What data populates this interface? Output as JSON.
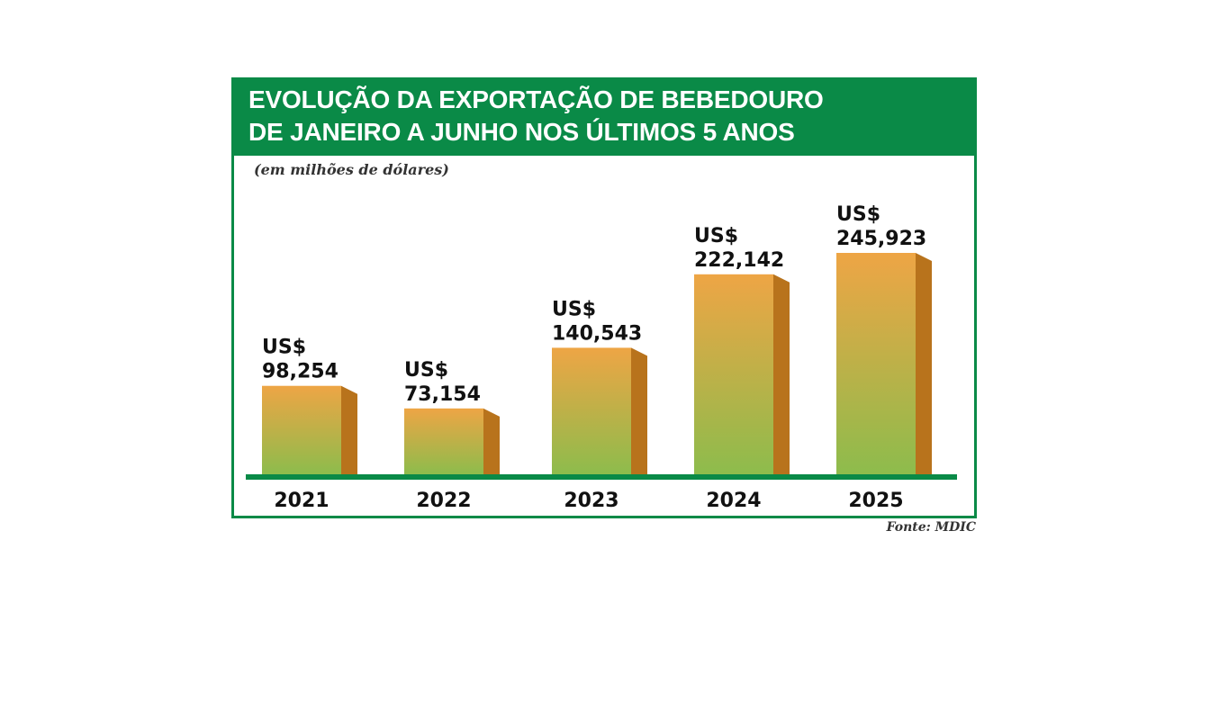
{
  "chart_data": {
    "type": "bar",
    "title": "EVOLUÇÃO DA EXPORTAÇÃO DE BEBEDOURO",
    "subtitle": "DE JANEIRO A JUNHO NOS ÚLTIMOS 5 ANOS",
    "unit_note": "(em milhões de dólares)",
    "currency_label": "US$",
    "categories": [
      "2021",
      "2022",
      "2023",
      "2024",
      "2025"
    ],
    "values": [
      98.254,
      73.154,
      140.543,
      222.142,
      245.923
    ],
    "value_labels": [
      "98,254",
      "73,154",
      "140,543",
      "222,142",
      "245,923"
    ],
    "ylim": [
      0,
      300
    ],
    "source": "Fonte: MDIC"
  },
  "colors": {
    "header_green": "#0a8a47",
    "bar_orange": "#eea545",
    "bar_green": "#8dbc4c",
    "bar_side": "#b8731c",
    "baseline": "#0a8a47"
  }
}
